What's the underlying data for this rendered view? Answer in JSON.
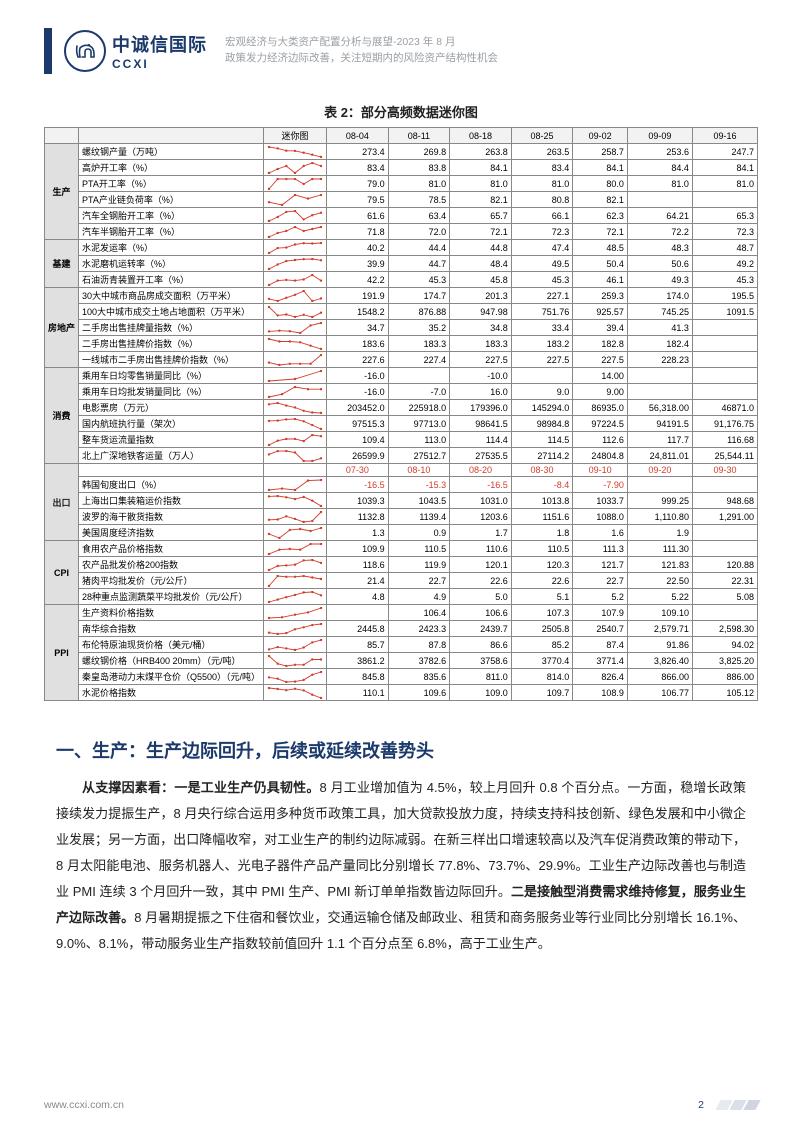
{
  "header": {
    "logo_cn": "中诚信国际",
    "logo_en": "CCXI",
    "sub1": "宏观经济与大类资产配置分析与展望-2023 年 8 月",
    "sub2": "政策发力经济边际改善，关注短期内的风险资产结构性机会"
  },
  "table": {
    "title": "表 2：部分高频数据迷你图",
    "columns": [
      "",
      "",
      "迷你图",
      "08-04",
      "08-11",
      "08-18",
      "08-25",
      "09-02",
      "09-09",
      "09-16"
    ],
    "date_row2": [
      "07-30",
      "08-10",
      "08-20",
      "08-30",
      "09-10",
      "09-20",
      "09-30"
    ],
    "spark_stroke": "#d23c2a",
    "groups": [
      {
        "cat": "生产",
        "rows": [
          {
            "name": "螺纹钢产量（万吨）",
            "v": [
              "273.4",
              "269.8",
              "263.8",
              "263.5",
              "258.7",
              "253.6",
              "247.7"
            ]
          },
          {
            "name": "高炉开工率（%）",
            "v": [
              "83.4",
              "83.8",
              "84.1",
              "83.4",
              "84.1",
              "84.4",
              "84.1"
            ]
          },
          {
            "name": "PTA开工率（%）",
            "v": [
              "79.0",
              "81.0",
              "81.0",
              "81.0",
              "80.0",
              "81.0",
              "81.0"
            ]
          },
          {
            "name": "PTA产业链负荷率（%）",
            "v": [
              "79.5",
              "78.5",
              "82.1",
              "80.8",
              "82.1",
              "",
              ""
            ]
          },
          {
            "name": "汽车全钢胎开工率（%）",
            "v": [
              "61.6",
              "63.4",
              "65.7",
              "66.1",
              "62.3",
              "64.21",
              "65.3"
            ]
          },
          {
            "name": "汽车半钢胎开工率（%）",
            "v": [
              "71.8",
              "72.0",
              "72.1",
              "72.3",
              "72.1",
              "72.2",
              "72.3"
            ]
          }
        ]
      },
      {
        "cat": "基建",
        "rows": [
          {
            "name": "水泥发运率（%）",
            "v": [
              "40.2",
              "44.4",
              "44.8",
              "47.4",
              "48.5",
              "48.3",
              "48.7"
            ]
          },
          {
            "name": "水泥磨机运转率（%）",
            "v": [
              "39.9",
              "44.7",
              "48.4",
              "49.5",
              "50.4",
              "50.6",
              "49.2"
            ]
          },
          {
            "name": "石油沥青装置开工率（%）",
            "v": [
              "42.2",
              "45.3",
              "45.8",
              "45.3",
              "46.1",
              "49.3",
              "45.3"
            ]
          }
        ]
      },
      {
        "cat": "房地产",
        "rows": [
          {
            "name": "30大中城市商品房成交面积（万平米）",
            "v": [
              "191.9",
              "174.7",
              "201.3",
              "227.1",
              "259.3",
              "174.0",
              "195.5"
            ]
          },
          {
            "name": "100大中城市成交土地占地面积（万平米）",
            "v": [
              "1548.2",
              "876.88",
              "947.98",
              "751.76",
              "925.57",
              "745.25",
              "1091.5"
            ]
          },
          {
            "name": "二手房出售挂牌量指数（%）",
            "v": [
              "34.7",
              "35.2",
              "34.8",
              "33.4",
              "39.4",
              "41.3",
              ""
            ]
          },
          {
            "name": "二手房出售挂牌价指数（%）",
            "v": [
              "183.6",
              "183.3",
              "183.3",
              "183.2",
              "182.8",
              "182.4",
              ""
            ]
          },
          {
            "name": "一线城市二手房出售挂牌价指数（%）",
            "v": [
              "227.6",
              "227.4",
              "227.5",
              "227.5",
              "227.5",
              "228.23",
              ""
            ]
          }
        ]
      },
      {
        "cat": "消费",
        "rows": [
          {
            "name": "乘用车日均零售销量同比（%）",
            "v": [
              "-16.0",
              "",
              "-10.0",
              "",
              "14.00",
              "",
              ""
            ]
          },
          {
            "name": "乘用车日均批发销量同比（%）",
            "v": [
              "-16.0",
              "-7.0",
              "16.0",
              "9.0",
              "9.00",
              "",
              ""
            ]
          },
          {
            "name": "电影票房（万元）",
            "v": [
              "203452.0",
              "225918.0",
              "179396.0",
              "145294.0",
              "86935.0",
              "56,318.00",
              "46871.0"
            ]
          },
          {
            "name": "国内航班执行量（架次）",
            "v": [
              "97515.3",
              "97713.0",
              "98641.5",
              "98984.8",
              "97224.5",
              "94191.5",
              "91,176.75"
            ]
          },
          {
            "name": "整车货运流量指数",
            "v": [
              "109.4",
              "113.0",
              "114.4",
              "114.5",
              "112.6",
              "117.7",
              "116.68"
            ]
          },
          {
            "name": "北上广深地铁客运量（万人）",
            "v": [
              "26599.9",
              "27512.7",
              "27535.5",
              "27114.2",
              "24804.8",
              "24,811.01",
              "25,544.11"
            ]
          }
        ]
      },
      {
        "cat": "出口",
        "date_override": true,
        "rows": [
          {
            "name": "韩国旬度出口（%）",
            "red": true,
            "v": [
              "-16.5",
              "-15.3",
              "-16.5",
              "-8.4",
              "-7.90",
              "",
              ""
            ]
          },
          {
            "name": "上海出口集装箱运价指数",
            "v": [
              "1039.3",
              "1043.5",
              "1031.0",
              "1013.8",
              "1033.7",
              "999.25",
              "948.68"
            ]
          },
          {
            "name": "波罗的海干散货指数",
            "v": [
              "1132.8",
              "1139.4",
              "1203.6",
              "1151.6",
              "1088.0",
              "1,110.80",
              "1,291.00"
            ]
          },
          {
            "name": "美国周度经济指数",
            "v": [
              "1.3",
              "0.9",
              "1.7",
              "1.8",
              "1.6",
              "1.9",
              ""
            ]
          }
        ]
      },
      {
        "cat": "CPI",
        "rows": [
          {
            "name": "食用农产品价格指数",
            "v": [
              "109.9",
              "110.5",
              "110.6",
              "110.5",
              "111.3",
              "111.30",
              ""
            ]
          },
          {
            "name": "农产品批发价格200指数",
            "v": [
              "118.6",
              "119.9",
              "120.1",
              "120.3",
              "121.7",
              "121.83",
              "120.88"
            ]
          },
          {
            "name": "猪肉平均批发价（元/公斤）",
            "v": [
              "21.4",
              "22.7",
              "22.6",
              "22.6",
              "22.7",
              "22.50",
              "22.31"
            ]
          },
          {
            "name": "28种重点监测蔬菜平均批发价（元/公斤）",
            "v": [
              "4.8",
              "4.9",
              "5.0",
              "5.1",
              "5.2",
              "5.22",
              "5.08"
            ]
          }
        ]
      },
      {
        "cat": "PPI",
        "rows": [
          {
            "name": "生产资料价格指数",
            "v": [
              "",
              "106.4",
              "106.6",
              "107.3",
              "107.9",
              "109.10",
              ""
            ]
          },
          {
            "name": "南华综合指数",
            "v": [
              "2445.8",
              "2423.3",
              "2439.7",
              "2505.8",
              "2540.7",
              "2,579.71",
              "2,598.30"
            ]
          },
          {
            "name": "布伦特原油现货价格（美元/桶）",
            "v": [
              "85.7",
              "87.8",
              "86.6",
              "85.2",
              "87.4",
              "91.86",
              "94.02"
            ]
          },
          {
            "name": "螺纹钢价格（HRB400 20mm）（元/吨）",
            "v": [
              "3861.2",
              "3782.6",
              "3758.6",
              "3770.4",
              "3771.4",
              "3,826.40",
              "3,825.20"
            ]
          },
          {
            "name": "秦皇岛港动力末煤平仓价（Q5500）（元/吨）",
            "v": [
              "845.8",
              "835.6",
              "811.0",
              "814.0",
              "826.4",
              "866.00",
              "886.00"
            ]
          },
          {
            "name": "水泥价格指数",
            "v": [
              "110.1",
              "109.6",
              "109.0",
              "109.7",
              "108.9",
              "106.77",
              "105.12"
            ]
          }
        ]
      }
    ]
  },
  "section": {
    "h1": "一、生产：生产边际回升，后续或延续改善势头",
    "p": "<b>从支撑因素看：一是工业生产仍具韧性。</b>8 月工业增加值为 4.5%，较上月回升 0.8 个百分点。一方面，稳增长政策接续发力提振生产，8 月央行综合运用多种货币政策工具，加大贷款投放力度，持续支持科技创新、绿色发展和中小微企业发展；另一方面，出口降幅收窄，对工业生产的制约边际减弱。在新三样出口增速较高以及汽车促消费政策的带动下，8 月太阳能电池、服务机器人、光电子器件产品产量同比分别增长 77.8%、73.7%、29.9%。工业生产边际改善也与制造业 PMI 连续 3 个月回升一致，其中 PMI 生产、PMI 新订单单指数皆边际回升。<b>二是接触型消费需求维持修复，服务业生产边际改善。</b>8 月暑期提振之下住宿和餐饮业，交通运输仓储及邮政业、租赁和商务服务业等行业同比分别增长 16.1%、9.0%、8.1%，带动服务业生产指数较前值回升 1.1 个百分点至 6.8%，高于工业生产。"
  },
  "footer": {
    "url": "www.ccxi.com.cn",
    "page": "2"
  }
}
